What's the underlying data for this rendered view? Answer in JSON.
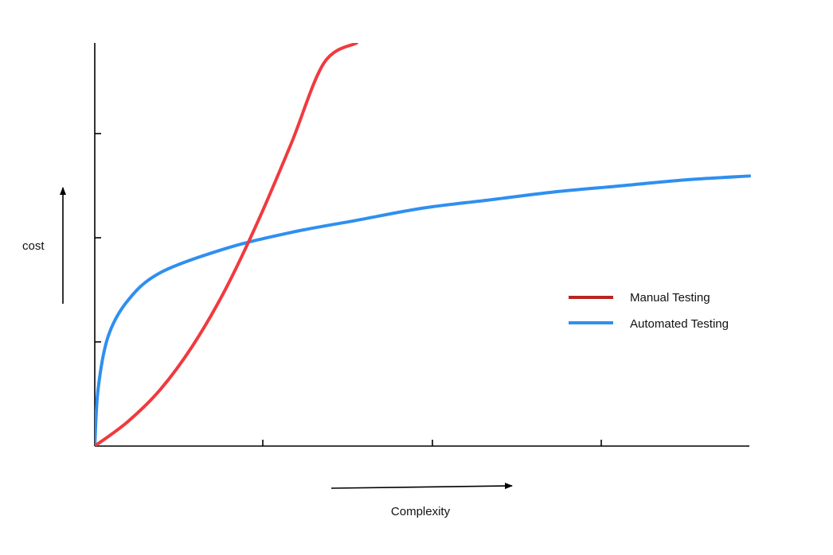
{
  "chart_data": {
    "type": "line",
    "title": "",
    "xlabel": "Complexity",
    "ylabel": "cost",
    "xlim": [
      0,
      1
    ],
    "ylim": [
      0,
      1
    ],
    "x_ticks_count": 3,
    "y_ticks_count": 3,
    "grid": false,
    "legend_position": "right",
    "series": [
      {
        "name": "Manual Testing",
        "color": "#f03a3f",
        "legend_color": "#b8241e",
        "x": [
          0.0,
          0.05,
          0.1,
          0.15,
          0.2,
          0.25,
          0.3,
          0.35,
          0.4
        ],
        "y": [
          0.0,
          0.06,
          0.14,
          0.25,
          0.39,
          0.56,
          0.75,
          0.95,
          1.0
        ]
      },
      {
        "name": "Automated Testing",
        "color": "#2f8ff0",
        "legend_color": "#2f8ff0",
        "x": [
          0.0,
          0.005,
          0.02,
          0.05,
          0.1,
          0.2,
          0.3,
          0.4,
          0.5,
          0.6,
          0.7,
          0.8,
          0.9,
          1.0
        ],
        "y": [
          0.0,
          0.14,
          0.27,
          0.36,
          0.43,
          0.49,
          0.53,
          0.56,
          0.59,
          0.61,
          0.63,
          0.645,
          0.66,
          0.67
        ]
      }
    ]
  }
}
